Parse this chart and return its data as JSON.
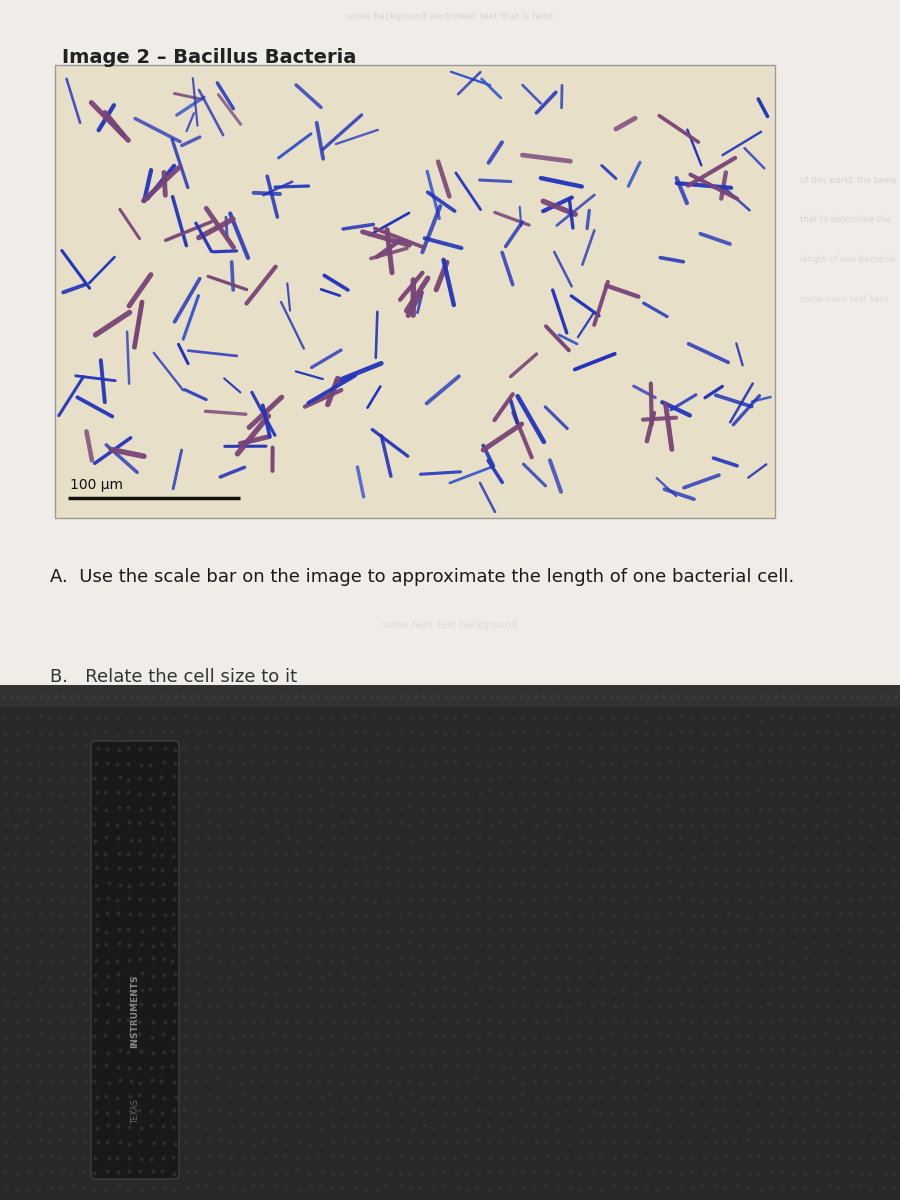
{
  "title": "Image 2 – Bacillus Bacteria",
  "title_fontsize": 14,
  "title_fontweight": "bold",
  "title_color": "#222222",
  "scale_bar_label": "100 μm",
  "question_a": "A.  Use the scale bar on the image to approximate the length of one bacterial cell.",
  "question_b": "B.   Relate the cell size to it",
  "question_fontsize": 13,
  "page_bg": "#f0ede8",
  "micro_bg": "#e8dfc8",
  "bacteria_blue": "#2233bb",
  "bacteria_purple": "#774477",
  "bacteria_blue2": "#3355cc",
  "scale_bar_color": "#111111",
  "lower_bg": "#282828",
  "badge_color": "#191919",
  "badge_border": "#444444",
  "top_strip_color": "#323232",
  "dot_color": "#333333"
}
